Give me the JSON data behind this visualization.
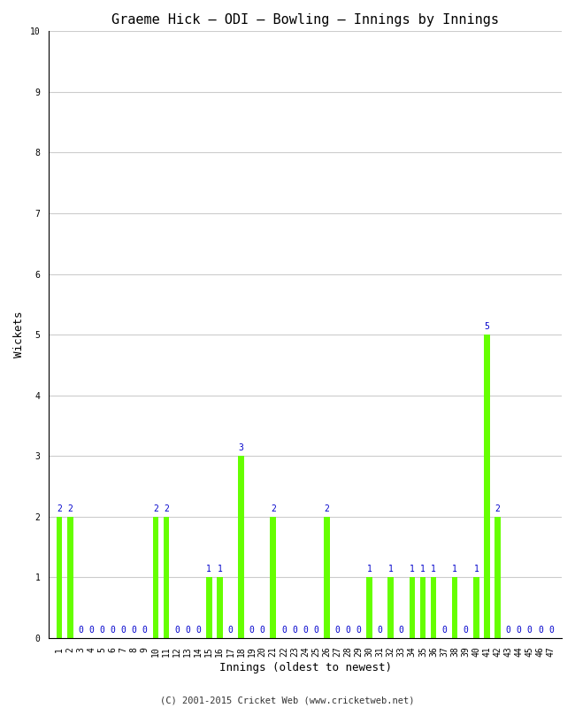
{
  "title": "Graeme Hick – ODI – Bowling – Innings by Innings",
  "xlabel": "Innings (oldest to newest)",
  "ylabel": "Wickets",
  "innings_labels": [
    "1",
    "2",
    "3",
    "4",
    "5",
    "6",
    "7",
    "8",
    "9",
    "10",
    "11",
    "12",
    "13",
    "14",
    "15",
    "16",
    "17",
    "18",
    "19",
    "20",
    "21",
    "22",
    "23",
    "24",
    "25",
    "26",
    "27",
    "28",
    "29",
    "30",
    "31",
    "32",
    "33",
    "34",
    "35",
    "36",
    "37",
    "38",
    "39",
    "40",
    "41",
    "42",
    "43",
    "44",
    "45",
    "46",
    "47"
  ],
  "wickets": [
    2,
    2,
    0,
    0,
    0,
    0,
    0,
    0,
    0,
    2,
    2,
    0,
    0,
    0,
    1,
    1,
    0,
    3,
    0,
    0,
    2,
    0,
    0,
    0,
    0,
    2,
    0,
    0,
    0,
    1,
    0,
    1,
    0,
    1,
    1,
    1,
    0,
    1,
    0,
    1,
    5,
    2,
    0,
    0,
    0,
    0,
    0
  ],
  "bar_color": "#66ff00",
  "label_color": "#0000cc",
  "background_color": "#ffffff",
  "ylim": [
    0,
    10
  ],
  "yticks": [
    0,
    1,
    2,
    3,
    4,
    5,
    6,
    7,
    8,
    9,
    10
  ],
  "grid_color": "#cccccc",
  "title_fontsize": 11,
  "axis_label_fontsize": 9,
  "tick_fontsize": 7,
  "value_label_fontsize": 7,
  "copyright": "(C) 2001-2015 Cricket Web (www.cricketweb.net)"
}
